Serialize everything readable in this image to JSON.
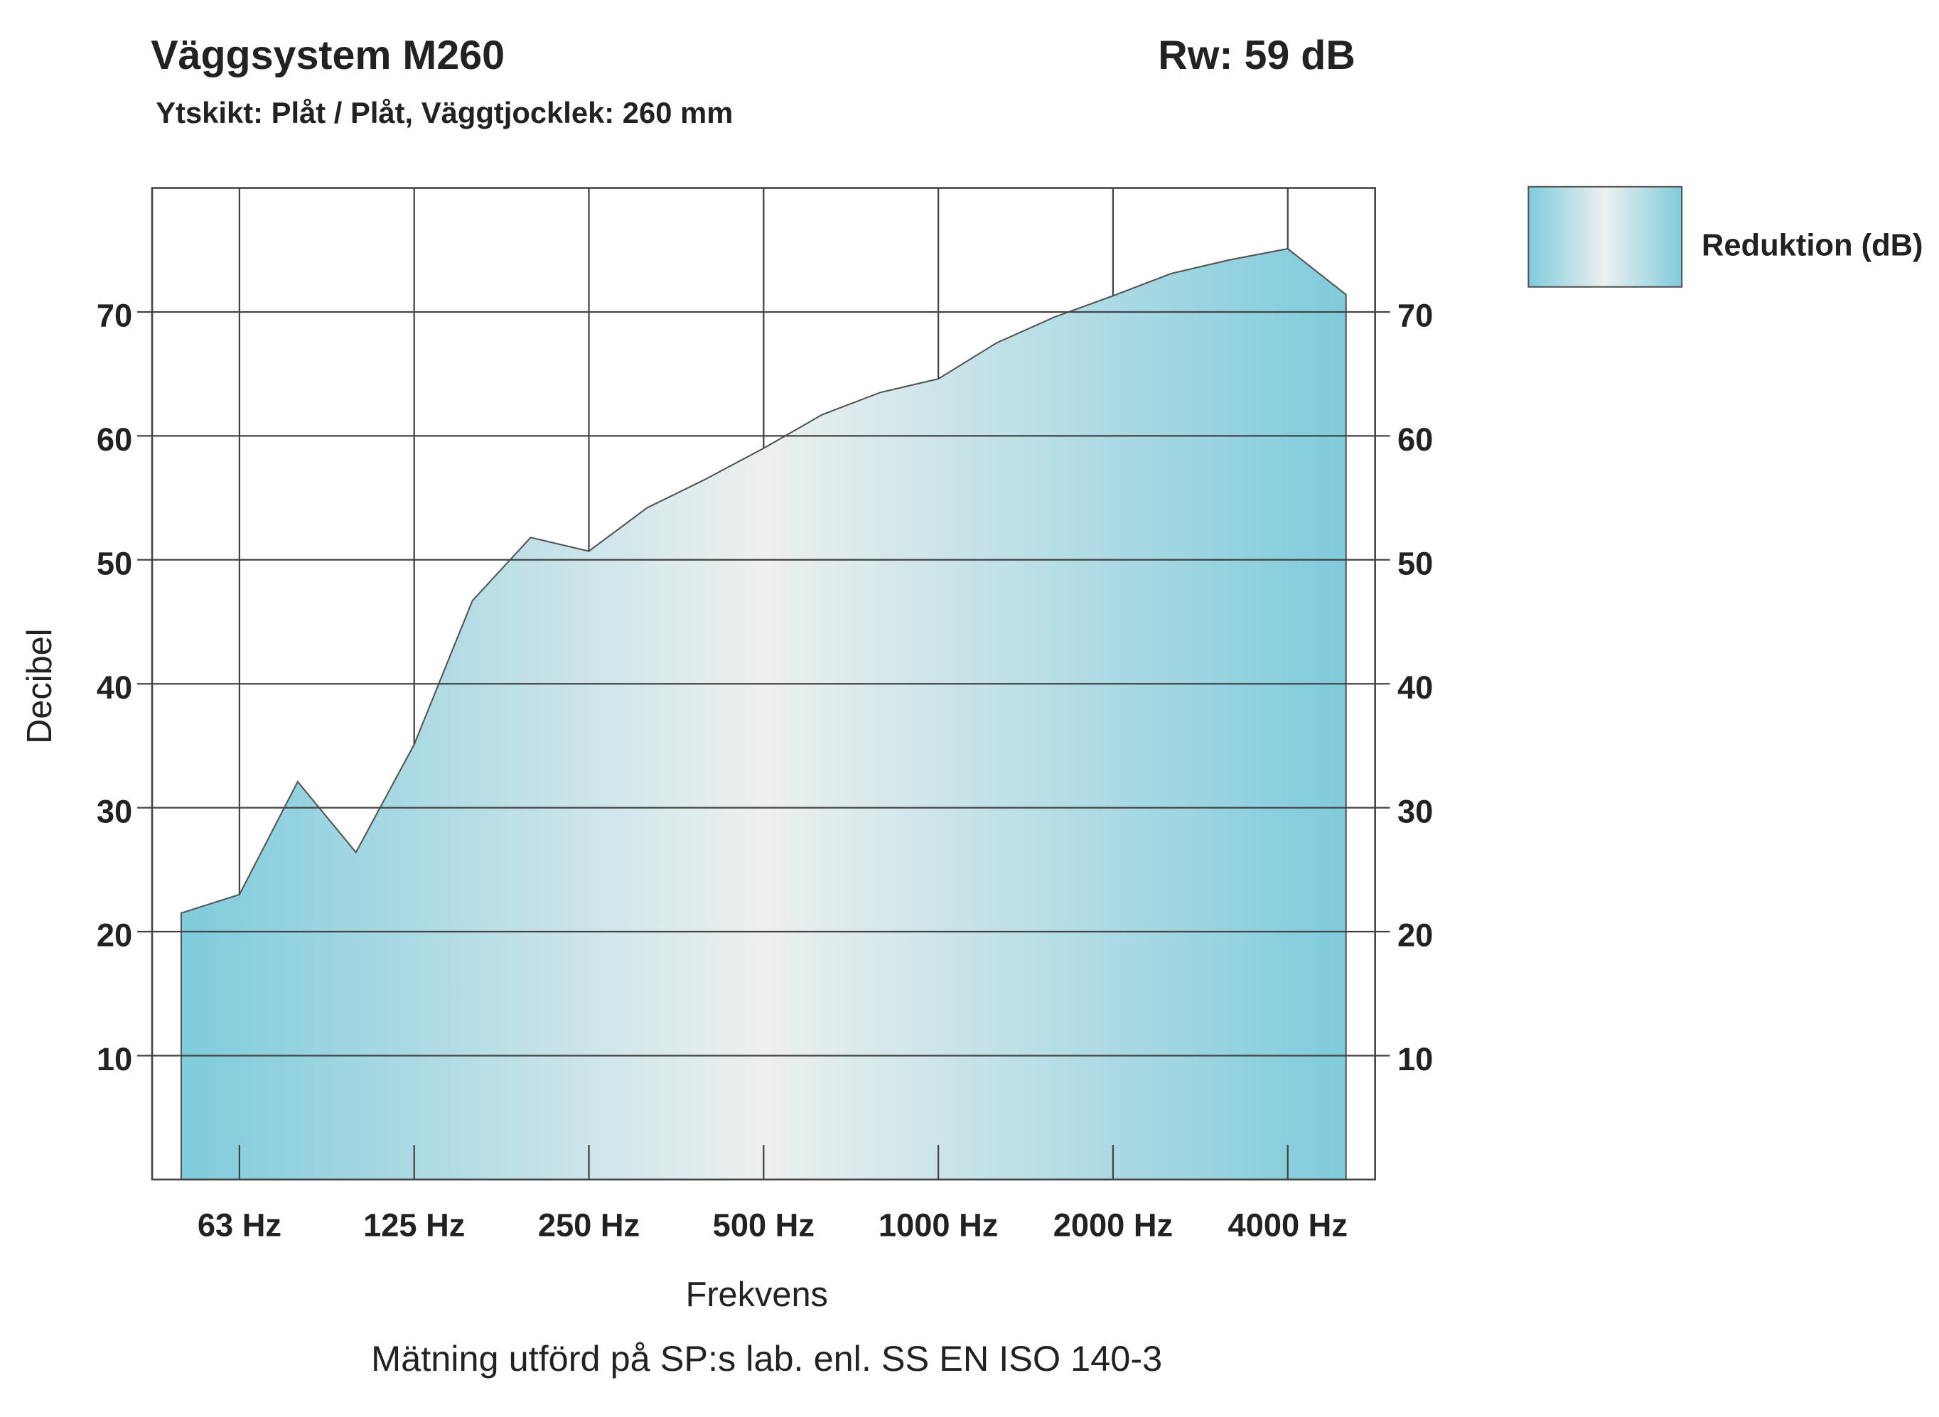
{
  "chart_data": {
    "type": "area",
    "title": "Väggsystem M260",
    "rating": "Rw: 59 dB",
    "subtitle": "Ytskikt: Plåt / Plåt, Väggtjocklek: 260 mm",
    "ylabel": "Decibel",
    "xlabel": "Frekvens",
    "footnote": "Mätning utförd på SP:s lab. enl. SS EN ISO 140-3",
    "categories": [
      null,
      "63 Hz",
      null,
      null,
      "125 Hz",
      null,
      null,
      "250 Hz",
      null,
      null,
      "500 Hz",
      null,
      null,
      "1000 Hz",
      null,
      null,
      "2000 Hz",
      null,
      null,
      "4000 Hz",
      null
    ],
    "series": [
      {
        "name": "Reduktion (dB)",
        "color": "#7fcbdc",
        "values": [
          21.5,
          23,
          32.1,
          26.4,
          35.1,
          46.7,
          51.8,
          50.7,
          54.2,
          56.5,
          59,
          61.7,
          63.5,
          64.6,
          67.5,
          69.6,
          71.3,
          73.1,
          74.2,
          75.1,
          71.4
        ]
      }
    ],
    "ylim": [
      0,
      80
    ],
    "yticks": [
      10,
      20,
      30,
      40,
      50,
      60,
      70
    ],
    "grid": true
  }
}
